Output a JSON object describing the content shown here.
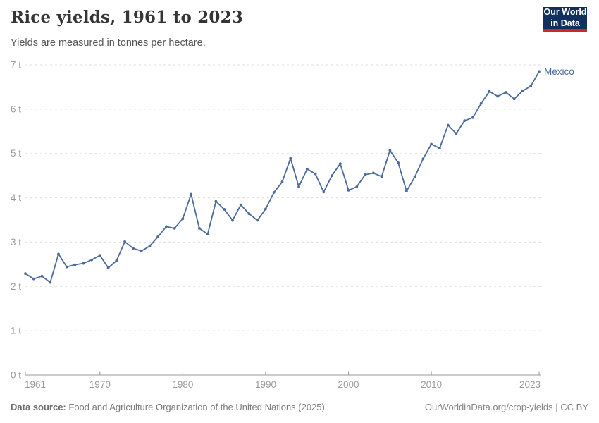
{
  "header": {
    "title": "Rice yields, 1961 to 2023",
    "subtitle": "Yields are measured in tonnes per hectare."
  },
  "logo": {
    "line1": "Our World",
    "line2": "in Data",
    "bg_color": "#12305E",
    "bar_color": "#CB2928"
  },
  "chart_data": {
    "type": "line",
    "title": "Rice yields, 1961 to 2023",
    "subtitle": "Yields are measured in tonnes per hectare.",
    "xlabel": "",
    "ylabel": "tonnes per hectare",
    "ylim": [
      0,
      7
    ],
    "y_tick_labels": [
      "0 t",
      "1 t",
      "2 t",
      "3 t",
      "4 t",
      "5 t",
      "6 t",
      "7 t"
    ],
    "x_ticks": [
      1961,
      1970,
      1980,
      1990,
      2000,
      2010,
      2023
    ],
    "grid": "horizontal-dashed",
    "legend_position": "end-of-line-label",
    "axis_color": "#999999",
    "grid_color": "#dddddd",
    "series": [
      {
        "name": "Mexico",
        "color": "#4C6A9C",
        "years": [
          1961,
          1962,
          1963,
          1964,
          1965,
          1966,
          1967,
          1968,
          1969,
          1970,
          1971,
          1972,
          1973,
          1974,
          1975,
          1976,
          1977,
          1978,
          1979,
          1980,
          1981,
          1982,
          1983,
          1984,
          1985,
          1986,
          1987,
          1988,
          1989,
          1990,
          1991,
          1992,
          1993,
          1994,
          1995,
          1996,
          1997,
          1998,
          1999,
          2000,
          2001,
          2002,
          2003,
          2004,
          2005,
          2006,
          2007,
          2008,
          2009,
          2010,
          2011,
          2012,
          2013,
          2014,
          2015,
          2016,
          2017,
          2018,
          2019,
          2020,
          2021,
          2022,
          2023
        ],
        "values": [
          2.29,
          2.17,
          2.23,
          2.09,
          2.73,
          2.44,
          2.49,
          2.52,
          2.6,
          2.7,
          2.42,
          2.58,
          3.01,
          2.86,
          2.8,
          2.91,
          3.12,
          3.35,
          3.31,
          3.53,
          4.08,
          3.31,
          3.18,
          3.92,
          3.74,
          3.49,
          3.84,
          3.64,
          3.49,
          3.75,
          4.12,
          4.36,
          4.89,
          4.25,
          4.65,
          4.54,
          4.13,
          4.5,
          4.77,
          4.17,
          4.25,
          4.52,
          4.56,
          4.48,
          5.07,
          4.79,
          4.15,
          4.47,
          4.88,
          5.21,
          5.12,
          5.64,
          5.45,
          5.74,
          5.81,
          6.13,
          6.4,
          6.29,
          6.38,
          6.23,
          6.41,
          6.52,
          6.85
        ]
      }
    ]
  },
  "footer": {
    "datasource_label": "Data source:",
    "datasource_text": "Food and Agriculture Organization of the United Nations (2025)",
    "attribution": "OurWorldinData.org/crop-yields | CC BY"
  }
}
